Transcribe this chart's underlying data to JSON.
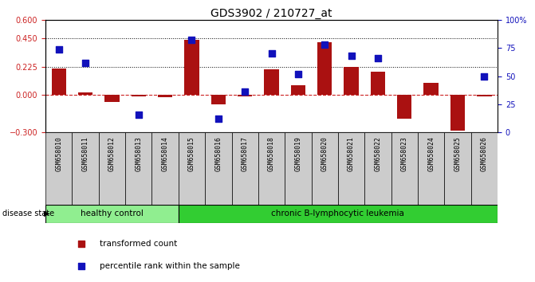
{
  "title": "GDS3902 / 210727_at",
  "samples": [
    "GSM658010",
    "GSM658011",
    "GSM658012",
    "GSM658013",
    "GSM658014",
    "GSM658015",
    "GSM658016",
    "GSM658017",
    "GSM658018",
    "GSM658019",
    "GSM658020",
    "GSM658021",
    "GSM658022",
    "GSM658023",
    "GSM658024",
    "GSM658025",
    "GSM658026"
  ],
  "bar_values": [
    0.21,
    0.02,
    -0.055,
    -0.012,
    -0.02,
    0.44,
    -0.075,
    -0.012,
    0.205,
    0.08,
    0.42,
    0.225,
    0.185,
    -0.19,
    0.095,
    -0.285,
    -0.012
  ],
  "dot_values": [
    74,
    62,
    null,
    16,
    null,
    82,
    12,
    36,
    70,
    52,
    78,
    68,
    66,
    null,
    null,
    null,
    50
  ],
  "ylim_left": [
    -0.3,
    0.6
  ],
  "ylim_right": [
    0,
    100
  ],
  "yticks_left": [
    -0.3,
    0,
    0.225,
    0.45,
    0.6
  ],
  "yticks_right": [
    0,
    25,
    50,
    75,
    100
  ],
  "hlines": [
    0.45,
    0.225
  ],
  "disease_groups": [
    {
      "label": "healthy control",
      "start": 0,
      "end": 5,
      "color": "#90ee90"
    },
    {
      "label": "chronic B-lymphocytic leukemia",
      "start": 5,
      "end": 17,
      "color": "#32cd32"
    }
  ],
  "bar_color": "#aa1111",
  "dot_color": "#1111bb",
  "zero_line_color": "#cc2222",
  "dot_size": 30,
  "bar_width": 0.55,
  "left_tick_color": "#cc2222",
  "right_tick_color": "#1111bb",
  "xtick_box_color": "#cccccc",
  "legend_items": [
    {
      "label": "transformed count",
      "color": "#aa1111",
      "marker": "s"
    },
    {
      "label": "percentile rank within the sample",
      "color": "#1111bb",
      "marker": "s"
    }
  ],
  "disease_state_label": "disease state"
}
